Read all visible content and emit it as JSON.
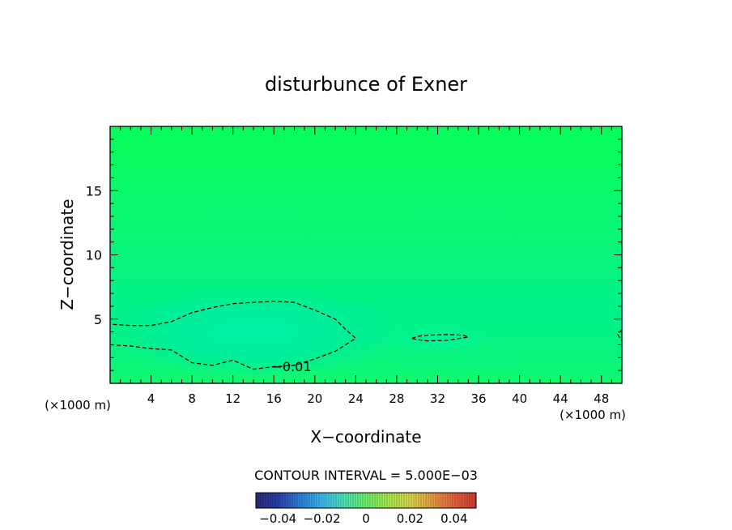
{
  "chart_data": {
    "type": "contour",
    "title": "disturbunce of Exner",
    "xlabel": "X−coordinate",
    "ylabel": "Z−coordinate",
    "xlim": [
      0,
      50
    ],
    "ylim": [
      0,
      20
    ],
    "x_ticks": [
      "4",
      "8",
      "12",
      "16",
      "20",
      "24",
      "28",
      "32",
      "36",
      "40",
      "44",
      "48"
    ],
    "y_ticks": [
      "5",
      "10",
      "15"
    ],
    "x_unit": "(×1000 m)",
    "y_unit": "(×1000 m)",
    "grid": false,
    "contour_interval_text": "CONTOUR INTERVAL = 5.000E−03",
    "contour_label": "−0.01",
    "contours": [
      {
        "level": -0.01,
        "style": "dashed",
        "points": [
          [
            0,
            3
          ],
          [
            2,
            2.9
          ],
          [
            4,
            2.7
          ],
          [
            6,
            2.6
          ],
          [
            8,
            1.6
          ],
          [
            10,
            1.4
          ],
          [
            12,
            1.8
          ],
          [
            14,
            1.1
          ],
          [
            16,
            1.3
          ],
          [
            18,
            1.4
          ],
          [
            20,
            1.9
          ],
          [
            22,
            2.5
          ],
          [
            24,
            3.5
          ],
          [
            23,
            4.2
          ],
          [
            22,
            5.0
          ],
          [
            20,
            5.7
          ],
          [
            18,
            6.3
          ],
          [
            16,
            6.4
          ],
          [
            14,
            6.3
          ],
          [
            12,
            6.2
          ],
          [
            10,
            5.9
          ],
          [
            8,
            5.5
          ],
          [
            6,
            4.8
          ],
          [
            4,
            4.5
          ],
          [
            2,
            4.5
          ],
          [
            0,
            4.6
          ]
        ]
      },
      {
        "level": -0.01,
        "style": "dashed",
        "points": [
          [
            29.5,
            3.5
          ],
          [
            30,
            3.4
          ],
          [
            31,
            3.3
          ],
          [
            33,
            3.35
          ],
          [
            35,
            3.6
          ],
          [
            34.5,
            3.75
          ],
          [
            33,
            3.8
          ],
          [
            31,
            3.75
          ],
          [
            30,
            3.65
          ],
          [
            29.5,
            3.5
          ]
        ]
      },
      {
        "level": -0.01,
        "style": "dashed",
        "points": [
          [
            50,
            4.2
          ],
          [
            49.6,
            3.8
          ],
          [
            50,
            3.3
          ]
        ]
      }
    ],
    "colorbar": {
      "ticks": [
        "−0.04",
        "−0.02",
        "0",
        "0.02",
        "0.04"
      ],
      "range": [
        -0.05,
        0.05
      ],
      "colors": [
        "#2b2b78",
        "#2a3fae",
        "#2f7fd9",
        "#39b8ee",
        "#4de3b8",
        "#6cf06a",
        "#a8ea4d",
        "#d8d749",
        "#e89e44",
        "#e8623c",
        "#d13a34"
      ]
    }
  }
}
